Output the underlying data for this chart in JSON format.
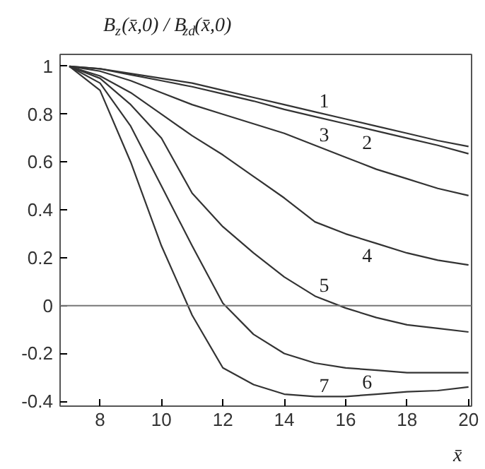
{
  "chart_data": {
    "type": "line",
    "ylabel": "B$_{z}$(x̄,0) / B$_{zd}$(x̄,0)",
    "xlabel": "x̄",
    "x": [
      7,
      8,
      9,
      10,
      11,
      12,
      13,
      14,
      15,
      16,
      17,
      18,
      19,
      20
    ],
    "series": [
      {
        "name": "1",
        "color": "#333333",
        "values": [
          1,
          0.99,
          0.97,
          0.95,
          0.93,
          0.9,
          0.87,
          0.84,
          0.81,
          0.78,
          0.75,
          0.72,
          0.69,
          0.665
        ]
      },
      {
        "name": "2",
        "color": "#333333",
        "values": [
          1,
          0.99,
          0.965,
          0.94,
          0.915,
          0.885,
          0.855,
          0.82,
          0.79,
          0.76,
          0.73,
          0.7,
          0.67,
          0.635
        ]
      },
      {
        "name": "3",
        "color": "#333333",
        "values": [
          1,
          0.98,
          0.94,
          0.89,
          0.84,
          0.8,
          0.76,
          0.72,
          0.67,
          0.62,
          0.57,
          0.53,
          0.49,
          0.46
        ]
      },
      {
        "name": "4",
        "color": "#333333",
        "values": [
          1,
          0.96,
          0.89,
          0.8,
          0.71,
          0.63,
          0.54,
          0.45,
          0.35,
          0.3,
          0.26,
          0.22,
          0.19,
          0.17
        ]
      },
      {
        "name": "5",
        "color": "#333333",
        "values": [
          1,
          0.95,
          0.84,
          0.7,
          0.47,
          0.33,
          0.22,
          0.12,
          0.04,
          -0.01,
          -0.05,
          -0.08,
          -0.095,
          -0.11
        ]
      },
      {
        "name": "6",
        "color": "#333333",
        "values": [
          1,
          0.93,
          0.75,
          0.5,
          0.25,
          0.01,
          -0.12,
          -0.2,
          -0.24,
          -0.26,
          -0.27,
          -0.28,
          -0.28,
          -0.28
        ]
      },
      {
        "name": "7",
        "color": "#333333",
        "values": [
          1,
          0.9,
          0.6,
          0.25,
          -0.04,
          -0.26,
          -0.33,
          -0.37,
          -0.38,
          -0.38,
          -0.37,
          -0.36,
          -0.355,
          -0.34
        ]
      }
    ],
    "ref_lines": [
      {
        "axis": "y",
        "value": 0,
        "color": "#777777"
      }
    ],
    "xlim": [
      6.7,
      20.1
    ],
    "ylim": [
      -0.42,
      1.05
    ],
    "xticks": [
      8,
      10,
      12,
      14,
      16,
      18,
      20
    ],
    "yticks": [
      -0.4,
      -0.2,
      0,
      0.2,
      0.4,
      0.6,
      0.8,
      1
    ],
    "grid": false,
    "line_style": "solid",
    "marker": "none"
  }
}
